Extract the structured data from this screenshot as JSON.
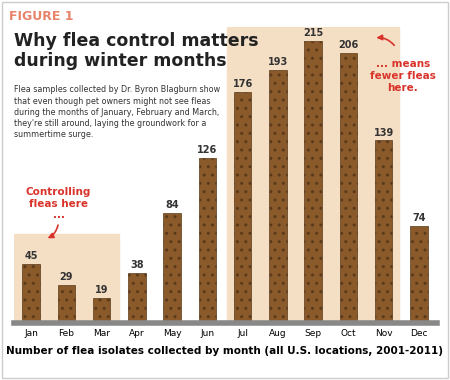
{
  "header": "FIGURE 1",
  "chart_data": {
    "type": "bar",
    "title": "Why flea control matters during winter months",
    "subtitle": "Flea samples collected by Dr. Byron Blagburn show that even though pet owners might not see fleas during the months of January, February and March, they're still around, laying the groundwork for a summertime surge.",
    "annotations": [
      "Controlling fleas here ...",
      "... means fewer fleas here."
    ],
    "xlabel": "Number of flea isolates collected by month (all U.S. locations, 2001-2011)",
    "categories": [
      "Jan",
      "Feb",
      "Mar",
      "Apr",
      "May",
      "Jun",
      "Jul",
      "Aug",
      "Sep",
      "Oct",
      "Nov",
      "Dec"
    ],
    "values": [
      45,
      29,
      19,
      38,
      84,
      126,
      176,
      193,
      215,
      206,
      139,
      74
    ],
    "color": "#8b5a2b",
    "data_labels": true,
    "tick_labels": "x",
    "grid": false
  }
}
